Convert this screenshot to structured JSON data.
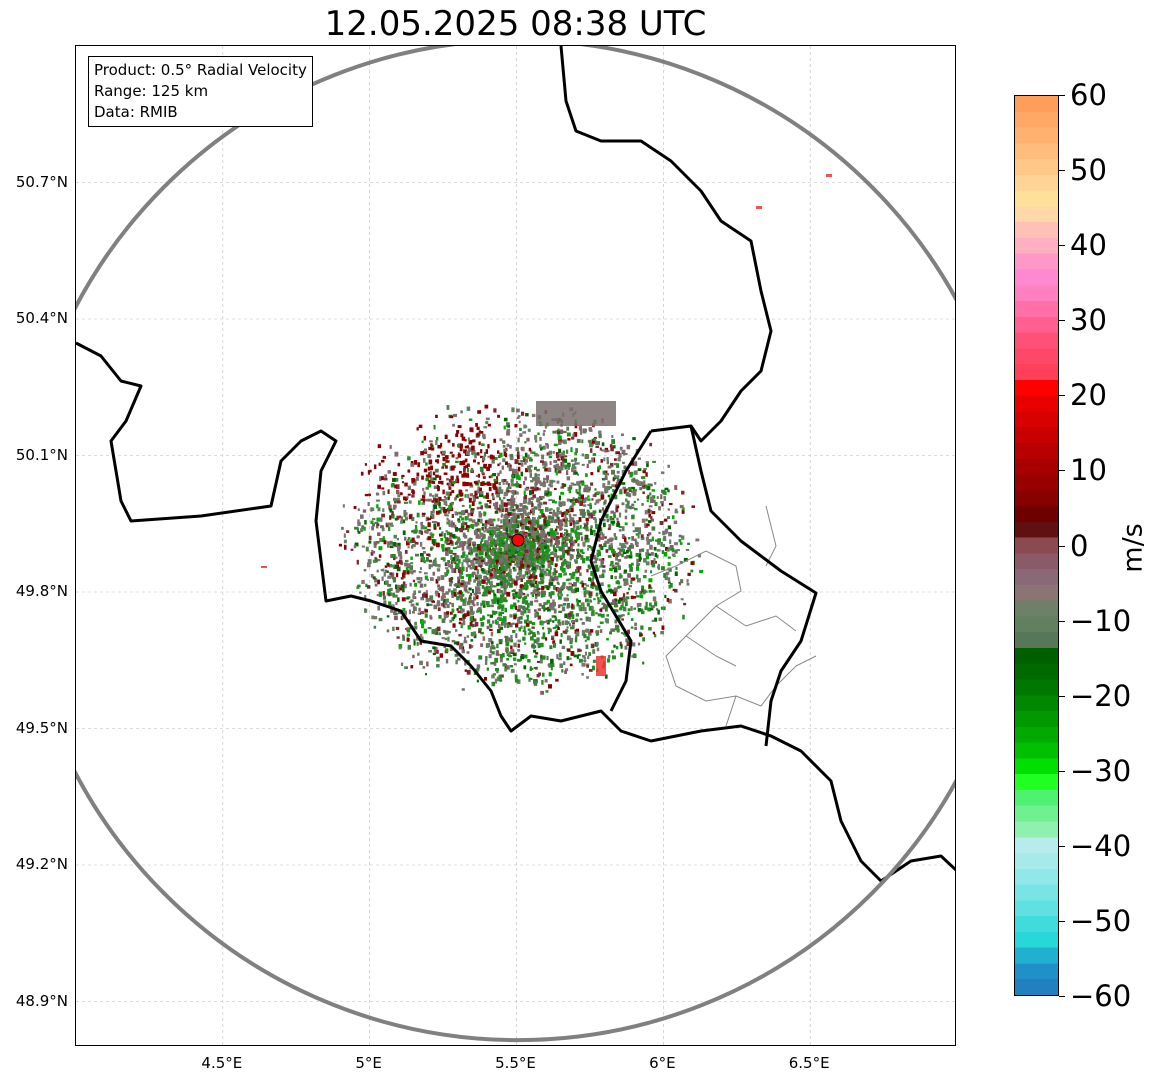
{
  "title": "12.05.2025 08:38 UTC",
  "info_box": {
    "product": "Product: 0.5° Radial Velocity",
    "range": "Range: 125 km",
    "data": "Data: RMIB"
  },
  "map": {
    "lon_range": [
      4.0,
      7.0
    ],
    "lat_range": [
      48.8,
      51.0
    ],
    "radar_site": {
      "lon": 5.505,
      "lat": 49.914
    },
    "range_km": 125,
    "x_ticks": [
      "4.5°E",
      "5°E",
      "5.5°E",
      "6°E",
      "6.5°E"
    ],
    "x_tick_values": [
      4.5,
      5.0,
      5.5,
      6.0,
      6.5
    ],
    "y_ticks": [
      "50.7°N",
      "50.4°N",
      "50.1°N",
      "49.8°N",
      "49.5°N",
      "49.2°N",
      "48.9°N"
    ],
    "y_tick_values": [
      50.7,
      50.4,
      50.1,
      49.8,
      49.5,
      49.2,
      48.9
    ]
  },
  "colorbar": {
    "label": "m/s",
    "range": [
      -60,
      60
    ],
    "ticks": [
      "60",
      "50",
      "40",
      "30",
      "20",
      "10",
      "0",
      "−10",
      "−20",
      "−30",
      "−40",
      "−50",
      "−60"
    ],
    "tick_values": [
      60,
      50,
      40,
      30,
      20,
      10,
      0,
      -10,
      -20,
      -30,
      -40,
      -50,
      -60
    ],
    "colors_top_to_bottom": [
      "#ff9e5a",
      "#ffa866",
      "#ffb270",
      "#ffbc7a",
      "#ffc888",
      "#ffd295",
      "#ffe09a",
      "#ffd8a8",
      "#ffc0b8",
      "#ffb0c0",
      "#ff98c8",
      "#ff88d0",
      "#ff80c0",
      "#ff70a8",
      "#ff6090",
      "#ff5078",
      "#ff4868",
      "#ff4058",
      "#ff0000",
      "#e80000",
      "#d80000",
      "#c80000",
      "#b80000",
      "#a80000",
      "#980000",
      "#880000",
      "#6e0000",
      "#601010",
      "#8a4a50",
      "#8a5a68",
      "#8a6878",
      "#8a7474",
      "#6e8068",
      "#608060",
      "#567858",
      "#006000",
      "#006a00",
      "#007800",
      "#008800",
      "#009a00",
      "#00aa00",
      "#00c000",
      "#00e000",
      "#22ff22",
      "#50f070",
      "#70f090",
      "#90f0b0",
      "#b8ecec",
      "#a8eaea",
      "#90e8e8",
      "#78e4e4",
      "#60e0e0",
      "#40dcdc",
      "#28d8d8",
      "#20b0d0",
      "#2090c8",
      "#2080c0"
    ]
  }
}
